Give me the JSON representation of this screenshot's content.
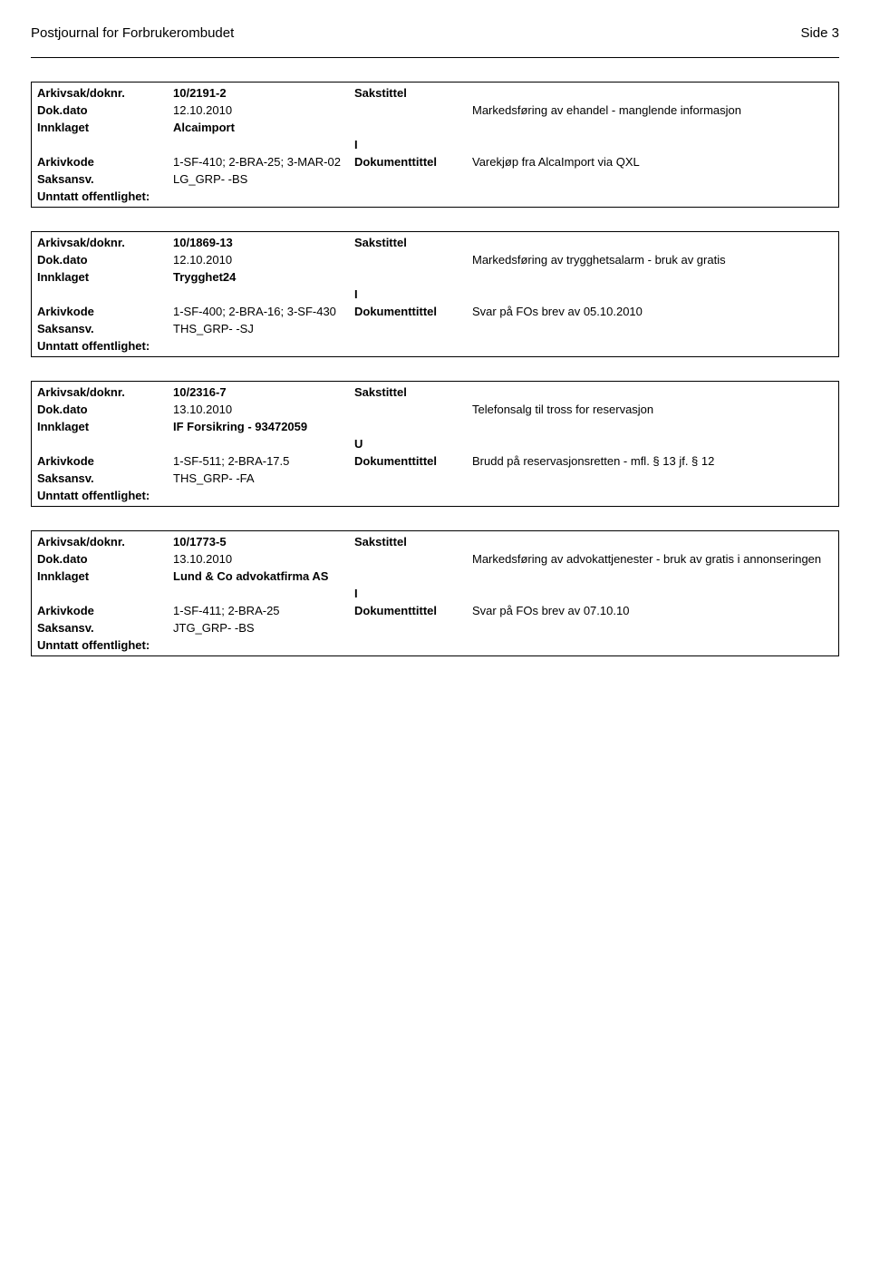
{
  "header": {
    "title": "Postjournal for Forbrukerombudet",
    "page": "Side 3"
  },
  "records": [
    {
      "arkiv_label": "Arkivsak/doknr.",
      "arkiv_val": "10/2191-2",
      "saks_label": "Sakstittel",
      "dokdato_label": "Dok.dato",
      "dokdato_val": "12.10.2010",
      "sakstittel": "Markedsføring av ehandel - manglende informasjon",
      "innklaget_label": "Innklaget",
      "innklaget_val": "Alcaimport",
      "iu": "I",
      "arkivkode_label": "Arkivkode",
      "arkivkode_val": "1-SF-410; 2-BRA-25; 3-MAR-02",
      "doktittel_label": "Dokumenttittel",
      "doktittel_val": "Varekjøp fra AlcaImport via QXL",
      "saksansv_label": "Saksansv.",
      "saksansv_val": "LG_GRP- -BS",
      "unntatt_label": "Unntatt offentlighet:",
      "unntatt_val": ""
    },
    {
      "arkiv_label": "Arkivsak/doknr.",
      "arkiv_val": "10/1869-13",
      "saks_label": "Sakstittel",
      "dokdato_label": "Dok.dato",
      "dokdato_val": "12.10.2010",
      "sakstittel": "Markedsføring av trygghetsalarm - bruk av gratis",
      "innklaget_label": "Innklaget",
      "innklaget_val": "Trygghet24",
      "iu": "I",
      "arkivkode_label": "Arkivkode",
      "arkivkode_val": "1-SF-400; 2-BRA-16; 3-SF-430",
      "doktittel_label": "Dokumenttittel",
      "doktittel_val": "Svar på FOs brev av 05.10.2010",
      "saksansv_label": "Saksansv.",
      "saksansv_val": "THS_GRP- -SJ",
      "unntatt_label": "Unntatt offentlighet:",
      "unntatt_val": ""
    },
    {
      "arkiv_label": "Arkivsak/doknr.",
      "arkiv_val": "10/2316-7",
      "saks_label": "Sakstittel",
      "dokdato_label": "Dok.dato",
      "dokdato_val": "13.10.2010",
      "sakstittel": "Telefonsalg til tross for reservasjon",
      "innklaget_label": "Innklaget",
      "innklaget_val": "IF Forsikring - 93472059",
      "iu": "U",
      "arkivkode_label": "Arkivkode",
      "arkivkode_val": "1-SF-511; 2-BRA-17.5",
      "doktittel_label": "Dokumenttittel",
      "doktittel_val": "Brudd på reservasjonsretten - mfl. § 13 jf. § 12",
      "saksansv_label": "Saksansv.",
      "saksansv_val": "THS_GRP- -FA",
      "unntatt_label": "Unntatt offentlighet:",
      "unntatt_val": ""
    },
    {
      "arkiv_label": "Arkivsak/doknr.",
      "arkiv_val": "10/1773-5",
      "saks_label": "Sakstittel",
      "dokdato_label": "Dok.dato",
      "dokdato_val": "13.10.2010",
      "sakstittel": "Markedsføring av advokattjenester - bruk av gratis i annonseringen",
      "innklaget_label": "Innklaget",
      "innklaget_val": "Lund & Co advokatfirma AS",
      "iu": "I",
      "arkivkode_label": "Arkivkode",
      "arkivkode_val": "1-SF-411; 2-BRA-25",
      "doktittel_label": "Dokumenttittel",
      "doktittel_val": "Svar på FOs brev av 07.10.10",
      "saksansv_label": "Saksansv.",
      "saksansv_val": "JTG_GRP- -BS",
      "unntatt_label": "Unntatt offentlighet:",
      "unntatt_val": ""
    }
  ]
}
